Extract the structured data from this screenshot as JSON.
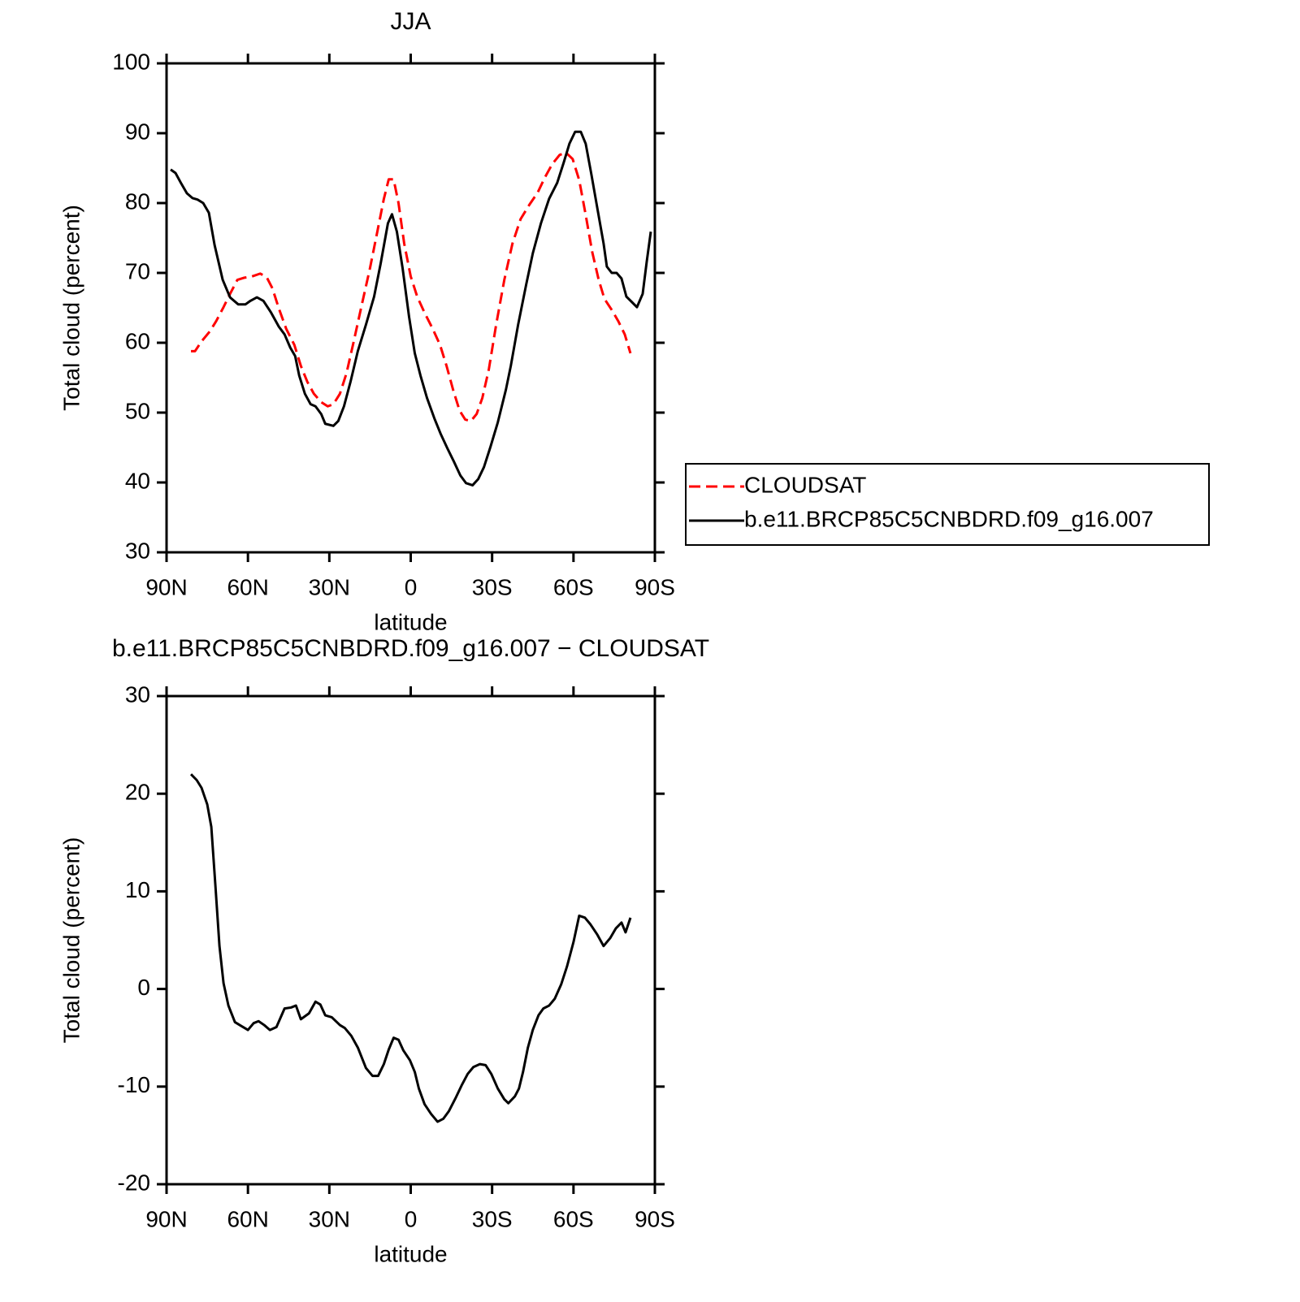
{
  "chart_data": [
    {
      "type": "line",
      "title": "JJA",
      "xlabel": "latitude",
      "ylabel": "Total cloud (percent)",
      "xlim": [
        90,
        -90
      ],
      "xticks": [
        {
          "value": 90,
          "label": "90N"
        },
        {
          "value": 60,
          "label": "60N"
        },
        {
          "value": 30,
          "label": "30N"
        },
        0,
        {
          "value": -30,
          "label": "30S"
        },
        {
          "value": -60,
          "label": "60S"
        },
        {
          "value": -90,
          "label": "90S"
        }
      ],
      "ylim": [
        30,
        100
      ],
      "yticks": [
        30,
        40,
        50,
        60,
        70,
        80,
        90,
        100
      ],
      "legend": "right",
      "series": [
        {
          "name": "CLOUDSAT",
          "color": "#ff0000",
          "line_style": "dashed",
          "x": [
            81,
            79.5,
            77.1,
            74.1,
            71.7,
            69,
            66.6,
            63.9,
            61.5,
            58.5,
            55.5,
            53.1,
            51,
            48.6,
            45.9,
            42.9,
            40.5,
            38.1,
            35.7,
            33,
            30.6,
            28.5,
            26.1,
            23.7,
            21,
            18,
            15,
            12,
            9.9,
            8.1,
            6.3,
            4.5,
            2.4,
            0,
            -2.4,
            -5.1,
            -8.1,
            -10.8,
            -13.2,
            -15.6,
            -18,
            -20.1,
            -22.2,
            -24.3,
            -26.4,
            -28.8,
            -31.5,
            -34.5,
            -37.5,
            -40.5,
            -43.8,
            -46.8,
            -49.5,
            -52.2,
            -54.9,
            -57.3,
            -59.7,
            -62.1,
            -64.5,
            -66.9,
            -69.3,
            -71.4,
            -74.1,
            -76.5,
            -78.9,
            -81
          ],
          "values": [
            58.8,
            58.8,
            60.2,
            61.6,
            63.1,
            65.1,
            67.0,
            69.0,
            69.3,
            69.5,
            69.9,
            69.4,
            67.8,
            64.9,
            62.0,
            59.7,
            56.7,
            54.4,
            52.7,
            51.5,
            50.9,
            51.2,
            52.7,
            55.6,
            60.2,
            65.5,
            70.7,
            76.5,
            80.6,
            83.4,
            83.4,
            80.0,
            74.2,
            69.5,
            66.6,
            64.3,
            62.0,
            59.7,
            56.7,
            53.3,
            50.3,
            49.0,
            48.8,
            49.8,
            52.1,
            56.2,
            62.6,
            69.0,
            74.2,
            77.7,
            79.8,
            81.5,
            83.7,
            85.6,
            86.9,
            87.2,
            86.3,
            83.3,
            78.3,
            73.0,
            69.0,
            66.3,
            64.7,
            63.1,
            61.2,
            58.5
          ]
        },
        {
          "name": "b.e11.BRCP85C5CNBDRD.f09_g16.007",
          "color": "#000000",
          "line_style": "solid",
          "x": [
            88.5,
            86.7,
            84.6,
            82.5,
            80.4,
            78.6,
            76.5,
            74.4,
            72.3,
            69.3,
            66.6,
            63.6,
            60.9,
            59.1,
            56.7,
            54.3,
            51.6,
            48.6,
            46.5,
            44.4,
            42.6,
            41.1,
            39,
            36.9,
            35.1,
            33,
            31.5,
            28.5,
            26.7,
            24.6,
            22.2,
            19.5,
            16.5,
            13.5,
            11.1,
            8.4,
            6.9,
            5.1,
            3,
            0.6,
            -1.5,
            -3.6,
            -6,
            -8.7,
            -11.1,
            -13.5,
            -15.9,
            -18.3,
            -20.4,
            -22.8,
            -24.9,
            -27,
            -29.4,
            -32.1,
            -35.1,
            -36.9,
            -39.6,
            -42.6,
            -45,
            -48,
            -51,
            -54,
            -56.4,
            -58.5,
            -60.6,
            -62.7,
            -64.5,
            -66.6,
            -69,
            -71.1,
            -72.3,
            -74.1,
            -75.9,
            -77.7,
            -79.5,
            -81.6,
            -83.4,
            -85.5,
            -87,
            -88.5
          ],
          "values": [
            84.8,
            84.3,
            82.8,
            81.4,
            80.7,
            80.5,
            80.0,
            78.6,
            74,
            69.0,
            66.5,
            65.5,
            65.5,
            66.0,
            66.5,
            66.0,
            64.4,
            62.3,
            61.2,
            59.3,
            58.1,
            55.3,
            52.7,
            51.2,
            50.9,
            49.8,
            48.4,
            48.1,
            48.8,
            50.9,
            54.4,
            58.8,
            62.6,
            66.6,
            71.3,
            77.1,
            78.4,
            75.9,
            70.7,
            63.7,
            58.5,
            55.3,
            52.1,
            49.2,
            46.9,
            44.9,
            43.0,
            41.0,
            39.9,
            39.6,
            40.5,
            42.2,
            45.1,
            48.6,
            53.3,
            56.7,
            62.6,
            68.4,
            72.8,
            77.1,
            80.6,
            82.9,
            85.8,
            88.5,
            90.2,
            90.2,
            88.5,
            84.1,
            78.8,
            74.2,
            70.9,
            70.0,
            70.0,
            69.2,
            66.6,
            65.8,
            65.1,
            67.0,
            71.6,
            75.9
          ]
        }
      ]
    },
    {
      "type": "line",
      "title": "b.e11.BRCP85C5CNBDRD.f09_g16.007 − CLOUDSAT",
      "xlabel": "latitude",
      "ylabel": "Total cloud (percent)",
      "xlim": [
        90,
        -90
      ],
      "xticks": [
        {
          "value": 90,
          "label": "90N"
        },
        {
          "value": 60,
          "label": "60N"
        },
        {
          "value": 30,
          "label": "30N"
        },
        0,
        {
          "value": -30,
          "label": "30S"
        },
        {
          "value": -60,
          "label": "60S"
        },
        {
          "value": -90,
          "label": "90S"
        }
      ],
      "ylim": [
        -20,
        30
      ],
      "yticks": [
        -20,
        -10,
        0,
        10,
        20,
        30
      ],
      "series": [
        {
          "color": "#000000",
          "line_style": "solid",
          "x": [
            81,
            78.9,
            77.1,
            75,
            73.5,
            72,
            70.5,
            69,
            67.2,
            64.8,
            62.4,
            60,
            57.9,
            56.1,
            54,
            51.9,
            49.5,
            46.5,
            44.1,
            42.3,
            40.5,
            37.5,
            35.1,
            33.3,
            31.5,
            29.1,
            26.1,
            24.3,
            21.9,
            19.5,
            16.5,
            14.1,
            12,
            9.9,
            8.1,
            6.3,
            4.5,
            2.7,
            0.3,
            -1.5,
            -3,
            -5.1,
            -7.5,
            -9.9,
            -12,
            -14.1,
            -16.5,
            -18.9,
            -21,
            -23.1,
            -25.5,
            -27.6,
            -29.7,
            -32.1,
            -34.5,
            -36,
            -38.4,
            -39.9,
            -41.4,
            -43.2,
            -45,
            -47.1,
            -48.9,
            -51,
            -53.1,
            -55.5,
            -57.6,
            -60,
            -62.1,
            -64.2,
            -66.3,
            -68.7,
            -71.1,
            -73.5,
            -75.6,
            -77.7,
            -79.2,
            -81
          ],
          "values": [
            22.0,
            21.4,
            20.6,
            18.9,
            16.6,
            10.6,
            4.4,
            0.6,
            -1.7,
            -3.4,
            -3.8,
            -4.2,
            -3.5,
            -3.3,
            -3.7,
            -4.2,
            -3.9,
            -2.0,
            -1.9,
            -1.7,
            -3.1,
            -2.5,
            -1.3,
            -1.6,
            -2.7,
            -2.9,
            -3.7,
            -4.0,
            -4.8,
            -6.0,
            -8.1,
            -8.9,
            -8.9,
            -7.7,
            -6.2,
            -5.0,
            -5.2,
            -6.3,
            -7.3,
            -8.5,
            -10.2,
            -11.8,
            -12.8,
            -13.6,
            -13.3,
            -12.5,
            -11.2,
            -9.8,
            -8.7,
            -8.0,
            -7.7,
            -7.8,
            -8.7,
            -10.2,
            -11.3,
            -11.7,
            -11.0,
            -10.2,
            -8.5,
            -6.0,
            -4.2,
            -2.7,
            -2.0,
            -1.7,
            -1.0,
            0.5,
            2.3,
            4.8,
            7.5,
            7.3,
            6.6,
            5.6,
            4.4,
            5.2,
            6.2,
            6.8,
            5.8,
            7.3
          ]
        }
      ]
    }
  ]
}
